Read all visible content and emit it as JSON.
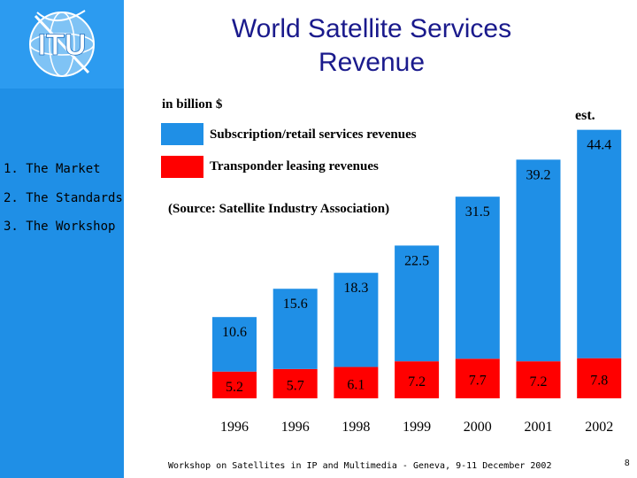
{
  "slide": {
    "title_line1": "World Satellite Services",
    "title_line2": "Revenue",
    "logo_text": "ITU",
    "footer": "Workshop on Satellites in IP and Multimedia - Geneva, 9-11 December 2002",
    "slide_number": "8"
  },
  "sidebar": {
    "items": [
      {
        "label": "1. The Market"
      },
      {
        "label": "2. The Standards"
      },
      {
        "label": "3. The Workshop"
      }
    ]
  },
  "chart_data": {
    "type": "bar",
    "stacked": true,
    "title": "World Satellite Services Revenue",
    "unit_label": "in billion $",
    "source": "(Source: Satellite Industry Association)",
    "annotation": "est.",
    "categories": [
      "1996",
      "1996",
      "1998",
      "1999",
      "2000",
      "2001",
      "2002"
    ],
    "series": [
      {
        "name": "Transponder leasing revenues",
        "color": "#ff0000",
        "values": [
          5.2,
          5.7,
          6.1,
          7.2,
          7.7,
          7.2,
          7.8
        ]
      },
      {
        "name": "Subscription/retail services revenues",
        "color": "#1f8fe6",
        "values": [
          10.6,
          15.6,
          18.3,
          22.5,
          31.5,
          39.2,
          44.4
        ]
      }
    ],
    "ylim": [
      0,
      53
    ]
  }
}
